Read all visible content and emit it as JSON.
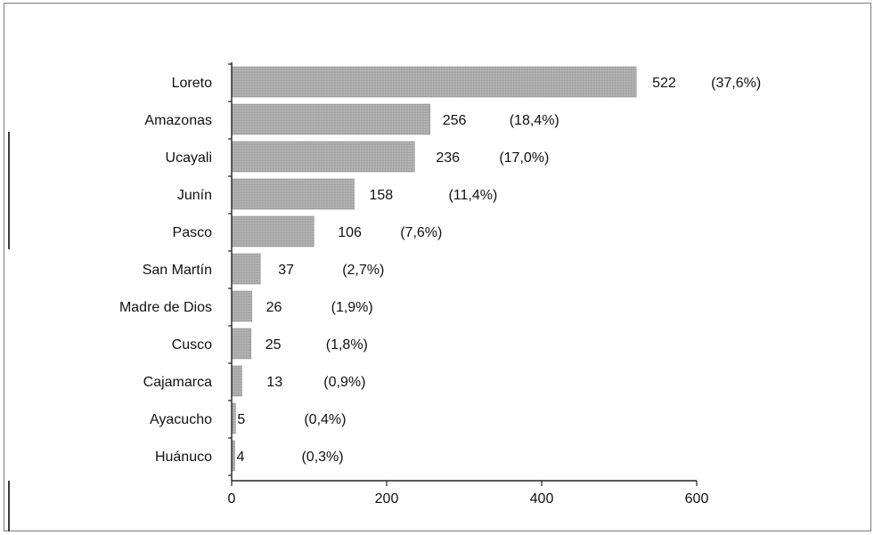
{
  "chart_data": {
    "type": "bar",
    "orientation": "horizontal",
    "categories": [
      "Loreto",
      "Amazonas",
      "Ucayali",
      "Junín",
      "Pasco",
      "San Martín",
      "Madre de Dios",
      "Cusco",
      "Cajamarca",
      "Ayacucho",
      "Huánuco"
    ],
    "values": [
      522,
      256,
      236,
      158,
      106,
      37,
      26,
      25,
      13,
      5,
      4
    ],
    "percent_labels": [
      "(37,6%)",
      "(18,4%)",
      "(17,0%)",
      "(11,4%)",
      "(7,6%)",
      "(2,7%)",
      "(1,9%)",
      "(1,8%)",
      "(0,9%)",
      "(0,4%)",
      "(0,3%)"
    ],
    "xticks": [
      "0",
      "200",
      "400",
      "600"
    ],
    "xlim": [
      0,
      600
    ],
    "bar_color": "#a9a9a9",
    "grid": false,
    "legend": "none"
  }
}
